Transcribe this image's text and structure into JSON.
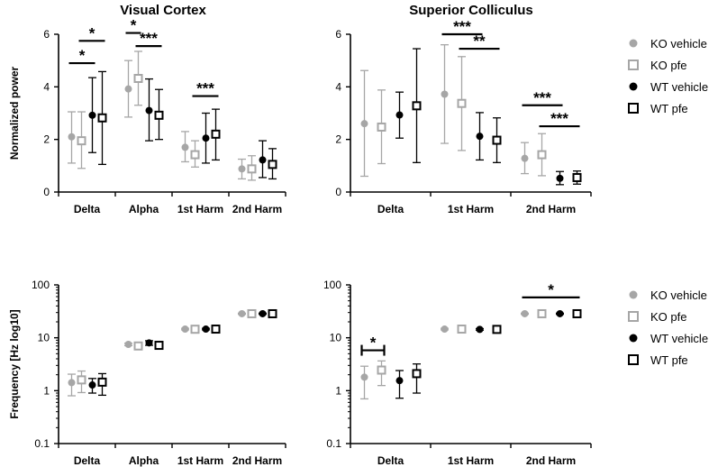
{
  "y_labels": {
    "top": "Normalized power",
    "bottom": "Frequency [Hz log10]"
  },
  "legend": [
    {
      "name": "KO vehicle",
      "marker": "circle",
      "color": "#a6a6a6"
    },
    {
      "name": "KO pfe",
      "marker": "square",
      "color": "#a6a6a6"
    },
    {
      "name": "WT vehicle",
      "marker": "circle",
      "color": "#000000"
    },
    {
      "name": "WT pfe",
      "marker": "square",
      "color": "#000000"
    }
  ],
  "chart_data": [
    {
      "type": "scatter",
      "title": "Visual Cortex",
      "ylabel": "Normalized power",
      "yscale": "linear",
      "ylim": [
        0,
        6
      ],
      "yticks": [
        "0",
        "2",
        "4",
        "6"
      ],
      "categories": [
        "Delta",
        "Alpha",
        "1st Harm",
        "2nd Harm"
      ],
      "series": [
        {
          "name": "KO vehicle",
          "mean": [
            2.1,
            3.92,
            1.7,
            0.88
          ],
          "low": [
            1.1,
            2.85,
            1.15,
            0.5
          ],
          "high": [
            3.05,
            5.0,
            2.3,
            1.25
          ]
        },
        {
          "name": "KO pfe",
          "mean": [
            1.95,
            4.32,
            1.42,
            0.88
          ],
          "low": [
            0.9,
            3.3,
            0.95,
            0.45
          ],
          "high": [
            3.05,
            5.35,
            1.95,
            1.38
          ]
        },
        {
          "name": "WT vehicle",
          "mean": [
            2.92,
            3.1,
            2.05,
            1.22
          ],
          "low": [
            1.5,
            1.95,
            1.1,
            0.55
          ],
          "high": [
            4.35,
            4.3,
            3.0,
            1.95
          ]
        },
        {
          "name": "WT pfe",
          "mean": [
            2.82,
            2.92,
            2.2,
            1.05
          ],
          "low": [
            1.05,
            2.0,
            1.22,
            0.5
          ],
          "high": [
            4.58,
            3.9,
            3.15,
            1.65
          ]
        }
      ],
      "annotations": [
        {
          "label": "*",
          "cat": 0,
          "from": 0,
          "to": 2,
          "y": 4.9
        },
        {
          "label": "*",
          "cat": 0,
          "from": 1,
          "to": 3,
          "y": 5.75
        },
        {
          "label": "*",
          "cat": 1,
          "from": 0,
          "to": 1,
          "y": 6.05
        },
        {
          "label": "***",
          "cat": 1,
          "from": 1,
          "to": 3,
          "y": 5.55
        },
        {
          "label": "***",
          "cat": 2,
          "from": 1,
          "to": 3,
          "y": 3.65
        }
      ]
    },
    {
      "type": "scatter",
      "title": "Superior Colliculus",
      "ylabel": "",
      "yscale": "linear",
      "ylim": [
        0,
        6
      ],
      "yticks": [
        "0",
        "2",
        "4",
        "6"
      ],
      "categories": [
        "Delta",
        "1st Harm",
        "2nd Harm"
      ],
      "series": [
        {
          "name": "KO vehicle",
          "mean": [
            2.6,
            3.72,
            1.28
          ],
          "low": [
            0.6,
            1.85,
            0.7
          ],
          "high": [
            4.62,
            5.6,
            1.88
          ]
        },
        {
          "name": "KO pfe",
          "mean": [
            2.47,
            3.37,
            1.42
          ],
          "low": [
            1.08,
            1.58,
            0.62
          ],
          "high": [
            3.88,
            5.15,
            2.22
          ]
        },
        {
          "name": "WT vehicle",
          "mean": [
            2.93,
            2.12,
            0.52
          ],
          "low": [
            2.05,
            1.22,
            0.28
          ],
          "high": [
            3.8,
            3.02,
            0.78
          ]
        },
        {
          "name": "WT pfe",
          "mean": [
            3.28,
            1.97,
            0.55
          ],
          "low": [
            1.12,
            1.12,
            0.3
          ],
          "high": [
            5.45,
            2.82,
            0.8
          ]
        }
      ],
      "annotations": [
        {
          "label": "***",
          "cat": 1,
          "from": 0,
          "to": 2,
          "y": 6.0
        },
        {
          "label": "**",
          "cat": 1,
          "from": 1,
          "to": 3,
          "y": 5.45
        },
        {
          "label": "***",
          "cat": 2,
          "from": 0,
          "to": 2,
          "y": 3.3
        },
        {
          "label": "***",
          "cat": 2,
          "from": 1,
          "to": 3,
          "y": 2.5
        }
      ]
    },
    {
      "type": "scatter",
      "title": "",
      "ylabel": "Frequency [Hz log10]",
      "yscale": "log",
      "ylim": [
        0.1,
        100
      ],
      "yticks": [
        "0.1",
        "1",
        "10",
        "100"
      ],
      "categories": [
        "Delta",
        "Alpha",
        "1st Harm",
        "2nd Harm"
      ],
      "series": [
        {
          "name": "KO vehicle",
          "mean": [
            1.42,
            7.5,
            14.6,
            28.5
          ],
          "low": [
            0.8,
            7.1,
            14.1,
            27.8
          ],
          "high": [
            2.05,
            7.9,
            15.1,
            29.2
          ]
        },
        {
          "name": "KO pfe",
          "mean": [
            1.6,
            7.0,
            14.5,
            28.5
          ],
          "low": [
            0.92,
            6.4,
            13.9,
            27.8
          ],
          "high": [
            2.35,
            7.6,
            15.1,
            29.2
          ]
        },
        {
          "name": "WT vehicle",
          "mean": [
            1.28,
            8.0,
            14.6,
            28.5
          ],
          "low": [
            0.9,
            7.2,
            14.1,
            27.8
          ],
          "high": [
            1.7,
            8.8,
            15.1,
            29.2
          ]
        },
        {
          "name": "WT pfe",
          "mean": [
            1.45,
            7.2,
            14.6,
            28.5
          ],
          "low": [
            0.82,
            6.3,
            14.0,
            27.8
          ],
          "high": [
            2.1,
            8.1,
            15.2,
            29.2
          ]
        }
      ],
      "annotations": []
    },
    {
      "type": "scatter",
      "title": "",
      "ylabel": "",
      "yscale": "log",
      "ylim": [
        0.1,
        100
      ],
      "yticks": [
        "0.1",
        "1",
        "10",
        "100"
      ],
      "categories": [
        "Delta",
        "1st Harm",
        "2nd Harm"
      ],
      "series": [
        {
          "name": "KO vehicle",
          "mean": [
            1.8,
            14.6,
            28.5
          ],
          "low": [
            0.7,
            14.1,
            27.8
          ],
          "high": [
            2.9,
            15.1,
            29.2
          ]
        },
        {
          "name": "KO pfe",
          "mean": [
            2.45,
            14.6,
            28.5
          ],
          "low": [
            1.25,
            14.1,
            27.8
          ],
          "high": [
            3.65,
            15.1,
            29.2
          ]
        },
        {
          "name": "WT vehicle",
          "mean": [
            1.55,
            14.4,
            28.5
          ],
          "low": [
            0.72,
            13.9,
            27.8
          ],
          "high": [
            2.4,
            14.9,
            29.2
          ]
        },
        {
          "name": "WT pfe",
          "mean": [
            2.1,
            14.4,
            28.5
          ],
          "low": [
            0.9,
            13.5,
            27.8
          ],
          "high": [
            3.2,
            15.4,
            29.2
          ]
        }
      ],
      "annotations": [
        {
          "label": "*",
          "cat": 0,
          "from": 0,
          "to": 1,
          "y": 5.8,
          "bracket": true
        },
        {
          "label": "*",
          "cat": 2,
          "from": 0,
          "to": 3,
          "y": 58
        }
      ]
    }
  ]
}
